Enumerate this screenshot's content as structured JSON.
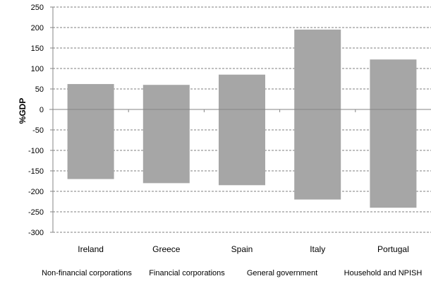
{
  "chart_data": {
    "type": "bar",
    "ylabel": "%GDP",
    "ylim": [
      -300,
      250
    ],
    "yticks": [
      "250",
      "200",
      "150",
      "100",
      "50",
      "0",
      "-50",
      "-100",
      "-150",
      "-200",
      "-250",
      "-300"
    ],
    "grid": "horizontal dashed",
    "categories": [
      "Ireland",
      "Greece",
      "Spain",
      "Italy",
      "Portugal"
    ],
    "ranges": [
      {
        "high": 62,
        "low": -170
      },
      {
        "high": 60,
        "low": -180
      },
      {
        "high": 85,
        "low": -185
      },
      {
        "high": 195,
        "low": -220
      },
      {
        "high": 122,
        "low": -240
      }
    ],
    "legend": [
      "Non-financial corporations",
      "Financial corporations",
      "General government",
      "Household and NPISH"
    ],
    "colors": {
      "bar": "#a6a6a6",
      "grid": "#7f7f7f",
      "axis": "#868686"
    }
  }
}
